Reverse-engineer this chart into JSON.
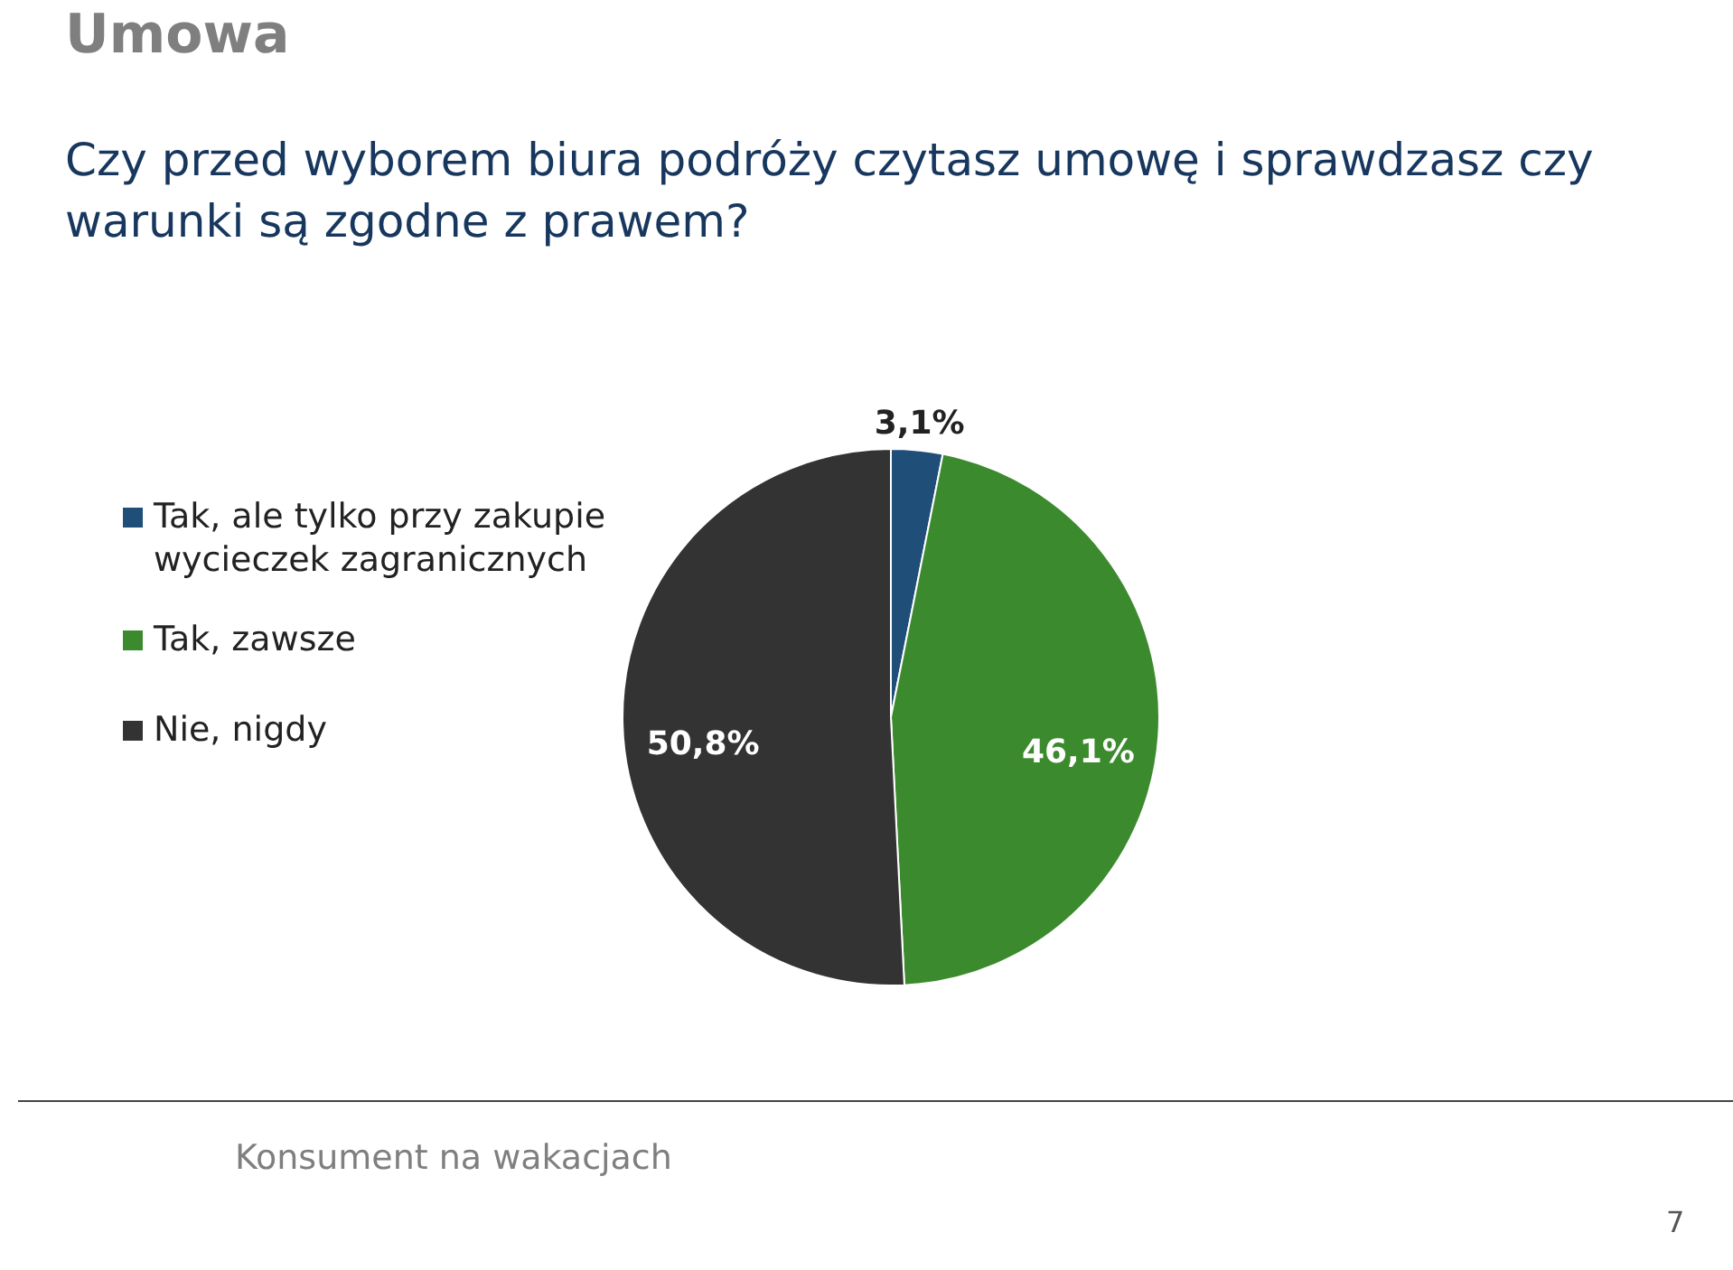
{
  "chart_data": {
    "type": "pie",
    "title": "Umowa",
    "subtitle": "Czy przed wyborem biura podróży czytasz umowę i sprawdzasz czy warunki są zgodne z prawem?",
    "categories": [
      "Tak, ale tylko przy zakupie wycieczek zagranicznych",
      "Tak, zawsze",
      "Nie, nigdy"
    ],
    "values": [
      3.1,
      46.1,
      50.8
    ],
    "value_labels": [
      "3,1%",
      "46,1%",
      "50,8%"
    ],
    "colors": [
      "#1f4e79",
      "#3c8a2e",
      "#333333"
    ],
    "legend": "left",
    "annotations": [
      "Konsument na wakacjach",
      "7"
    ]
  }
}
